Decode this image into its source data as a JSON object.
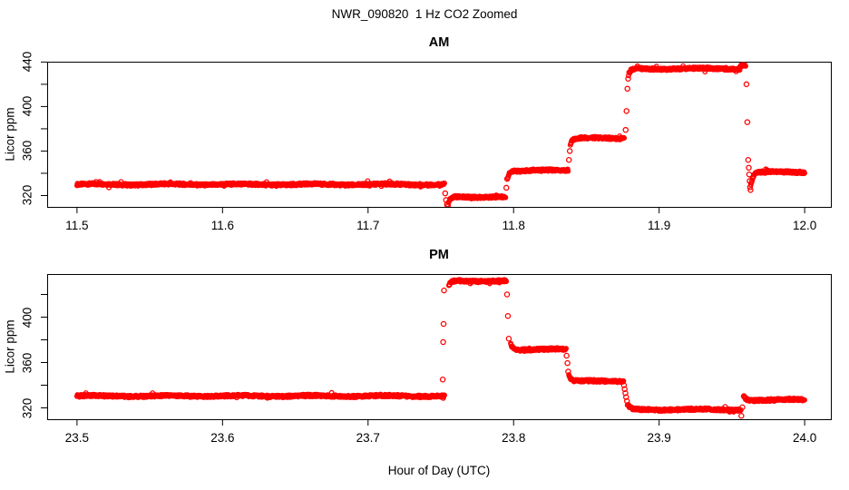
{
  "figure": {
    "title": "NWR_090820  1 Hz CO2 Zoomed",
    "xlabel": "Hour of Day (UTC)",
    "background": "#FFFFFF",
    "axis_color": "#000000",
    "point_color": "#FF0000"
  },
  "chart_data": [
    {
      "id": "am",
      "type": "scatter",
      "title": "AM",
      "ylabel": "Licor ppm",
      "marker": "open-circle",
      "color": "#FF0000",
      "grid": false,
      "sample_rate_hz": 1,
      "noise_ppm": 1.0,
      "xlim": [
        11.4795,
        12.018
      ],
      "ylim": [
        309.8,
        440.3
      ],
      "x_ticks": [
        11.5,
        11.6,
        11.7,
        11.8,
        11.9,
        12.0
      ],
      "x_tick_labels": [
        "11.5",
        "11.6",
        "11.7",
        "11.8",
        "11.9",
        "12.0"
      ],
      "y_ticks_minor": [
        320,
        340,
        360,
        380,
        400,
        420,
        440
      ],
      "y_ticks_labeled": [
        320,
        360,
        400,
        440
      ],
      "bands": [
        {
          "x0": 11.5,
          "x1": 11.7525,
          "ppm": 330.0,
          "ramp_from": null
        },
        {
          "x0": 11.755,
          "x1": 11.7945,
          "ppm": 318.8,
          "ramp_from": 311.5
        },
        {
          "x0": 11.796,
          "x1": 11.8375,
          "ppm": 342.5,
          "ramp_from": 337.0
        },
        {
          "x0": 11.839,
          "x1": 11.876,
          "ppm": 371.5,
          "ramp_from": 366.0
        },
        {
          "x0": 11.879,
          "x1": 11.9555,
          "ppm": 434.0,
          "ramp_from": 428.0
        },
        {
          "x0": 11.9555,
          "x1": 11.9595,
          "ppm": 437.0,
          "ramp_from": null
        },
        {
          "x0": 11.963,
          "x1": 12.0,
          "ppm": 341.0,
          "ramp_from": 329.0
        }
      ],
      "transition_points": [
        {
          "x": 11.753,
          "ppm": 322.0
        },
        {
          "x": 11.7536,
          "ppm": 316.0
        },
        {
          "x": 11.7542,
          "ppm": 312.0
        },
        {
          "x": 11.7547,
          "ppm": 310.5
        },
        {
          "x": 11.795,
          "ppm": 327.0
        },
        {
          "x": 11.7956,
          "ppm": 335.0
        },
        {
          "x": 11.838,
          "ppm": 352.0
        },
        {
          "x": 11.8386,
          "ppm": 360.0
        },
        {
          "x": 11.877,
          "ppm": 379.0
        },
        {
          "x": 11.8776,
          "ppm": 396.0
        },
        {
          "x": 11.8782,
          "ppm": 416.0
        },
        {
          "x": 11.8787,
          "ppm": 425.0
        },
        {
          "x": 11.96,
          "ppm": 420.0
        },
        {
          "x": 11.9606,
          "ppm": 386.0
        },
        {
          "x": 11.9612,
          "ppm": 352.0
        },
        {
          "x": 11.9616,
          "ppm": 345.0
        },
        {
          "x": 11.9619,
          "ppm": 339.0
        },
        {
          "x": 11.9622,
          "ppm": 333.0
        },
        {
          "x": 11.9625,
          "ppm": 327.5
        },
        {
          "x": 11.9628,
          "ppm": 325.0
        }
      ]
    },
    {
      "id": "pm",
      "type": "scatter",
      "title": "PM",
      "ylabel": "Licor ppm",
      "marker": "open-circle",
      "color": "#FF0000",
      "grid": false,
      "sample_rate_hz": 1,
      "noise_ppm": 1.0,
      "xlim": [
        23.4795,
        24.018
      ],
      "ylim": [
        310.0,
        438.0
      ],
      "x_ticks": [
        23.5,
        23.6,
        23.7,
        23.8,
        23.9,
        24.0
      ],
      "x_tick_labels": [
        "23.5",
        "23.6",
        "23.7",
        "23.8",
        "23.9",
        "24.0"
      ],
      "y_ticks_minor": [
        320,
        340,
        360,
        380,
        400,
        420
      ],
      "y_ticks_labeled": [
        320,
        360,
        400
      ],
      "bands": [
        {
          "x0": 23.5,
          "x1": 23.7525,
          "ppm": 330.5,
          "ramp_from": null
        },
        {
          "x0": 23.7555,
          "x1": 23.795,
          "ppm": 432.0,
          "ramp_from": 427.0
        },
        {
          "x0": 23.798,
          "x1": 23.836,
          "ppm": 371.5,
          "ramp_from": 377.0
        },
        {
          "x0": 23.838,
          "x1": 23.8755,
          "ppm": 343.5,
          "ramp_from": 349.0
        },
        {
          "x0": 23.879,
          "x1": 23.9555,
          "ppm": 318.5,
          "ramp_from": 322.0
        },
        {
          "x0": 23.958,
          "x1": 24.0,
          "ppm": 327.0,
          "ramp_from": 331.0
        }
      ],
      "transition_points": [
        {
          "x": 23.7513,
          "ppm": 345.0
        },
        {
          "x": 23.7516,
          "ppm": 378.0
        },
        {
          "x": 23.7519,
          "ppm": 394.0
        },
        {
          "x": 23.7522,
          "ppm": 423.5
        },
        {
          "x": 23.7955,
          "ppm": 420.0
        },
        {
          "x": 23.7961,
          "ppm": 401.0
        },
        {
          "x": 23.7967,
          "ppm": 381.0
        },
        {
          "x": 23.8364,
          "ppm": 366.0
        },
        {
          "x": 23.837,
          "ppm": 359.5
        },
        {
          "x": 23.8375,
          "ppm": 352.0
        },
        {
          "x": 23.8758,
          "ppm": 340.0
        },
        {
          "x": 23.8763,
          "ppm": 336.5
        },
        {
          "x": 23.8768,
          "ppm": 333.0
        },
        {
          "x": 23.8773,
          "ppm": 329.5
        },
        {
          "x": 23.8779,
          "ppm": 326.0
        },
        {
          "x": 23.8784,
          "ppm": 322.5
        },
        {
          "x": 23.956,
          "ppm": 318.0
        },
        {
          "x": 23.9565,
          "ppm": 313.0
        },
        {
          "x": 23.9572,
          "ppm": 320.5
        }
      ]
    }
  ]
}
